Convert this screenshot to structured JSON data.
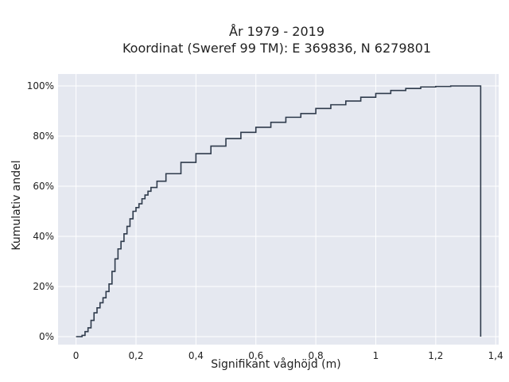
{
  "chart_data": {
    "type": "line",
    "step": true,
    "title": "År 1979 - 2019",
    "subtitle": "Koordinat (Sweref 99 TM): E 369836, N 6279801",
    "xlabel": "Signifikant våghöjd (m)",
    "ylabel": "Kumulativ andel",
    "xlim": [
      -0.06,
      1.41
    ],
    "ylim": [
      0,
      1.0
    ],
    "x_ticks": [
      0,
      0.2,
      0.4,
      0.6,
      0.8,
      1.0,
      1.2,
      1.4
    ],
    "x_tick_labels": [
      "0",
      "0,2",
      "0,4",
      "0,6",
      "0,8",
      "1",
      "1,2",
      "1,4"
    ],
    "y_ticks": [
      0,
      0.2,
      0.4,
      0.6,
      0.8,
      1.0
    ],
    "y_tick_labels": [
      "0%",
      "20%",
      "40%",
      "60%",
      "80%",
      "100%"
    ],
    "grid": true,
    "background_color": "#e5e8f0",
    "line_color": "#2f3b4c",
    "series": [
      {
        "x": [
          0.0,
          0.01,
          0.02,
          0.03,
          0.04,
          0.05,
          0.06,
          0.07,
          0.08,
          0.09,
          0.1,
          0.11,
          0.12,
          0.13,
          0.14,
          0.15,
          0.16,
          0.17,
          0.18,
          0.19,
          0.2,
          0.21,
          0.22,
          0.23,
          0.24,
          0.25,
          0.27,
          0.3,
          0.35,
          0.4,
          0.45,
          0.5,
          0.55,
          0.6,
          0.65,
          0.7,
          0.75,
          0.8,
          0.85,
          0.9,
          0.95,
          1.0,
          1.05,
          1.1,
          1.15,
          1.2,
          1.25,
          1.3,
          1.35
        ],
        "y": [
          0.0,
          0.0,
          0.005,
          0.02,
          0.035,
          0.065,
          0.095,
          0.115,
          0.135,
          0.155,
          0.18,
          0.21,
          0.26,
          0.31,
          0.35,
          0.38,
          0.41,
          0.44,
          0.47,
          0.5,
          0.515,
          0.53,
          0.55,
          0.565,
          0.58,
          0.595,
          0.62,
          0.65,
          0.695,
          0.73,
          0.76,
          0.79,
          0.815,
          0.835,
          0.855,
          0.875,
          0.89,
          0.91,
          0.925,
          0.94,
          0.955,
          0.97,
          0.982,
          0.99,
          0.996,
          0.998,
          1.0,
          1.0,
          1.0
        ]
      }
    ]
  }
}
